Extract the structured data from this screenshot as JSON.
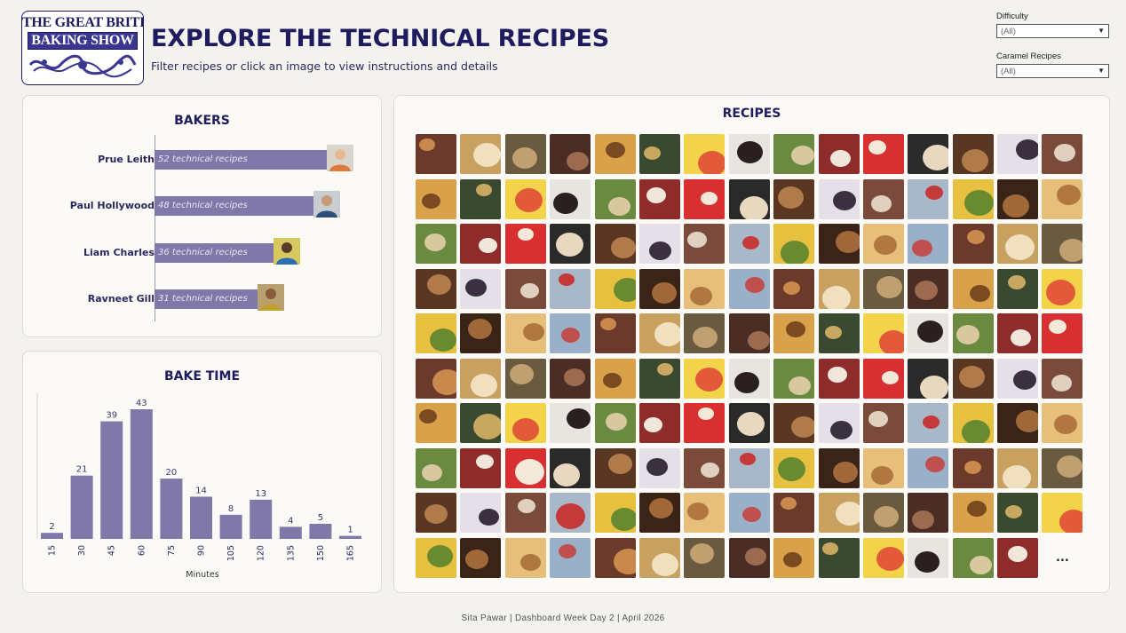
{
  "logo": {
    "line1": "THE GREAT BRITISH",
    "line2": "BAKING SHOW"
  },
  "header": {
    "title": "EXPLORE THE TECHNICAL RECIPES",
    "subtitle": "Filter recipes or click an image to view instructions and details"
  },
  "filters": [
    {
      "label": "Difficulty",
      "value": "(All)"
    },
    {
      "label": "Caramel Recipes",
      "value": "(All)"
    }
  ],
  "bakers_panel": {
    "title": "BAKERS",
    "bakers": [
      {
        "name": "Prue Leith",
        "count": 52,
        "label": "52 technical recipes"
      },
      {
        "name": "Paul Hollywood",
        "count": 48,
        "label": "48 technical recipes"
      },
      {
        "name": "Liam Charles",
        "count": 36,
        "label": "36 technical recipes"
      },
      {
        "name": "Ravneet Gill",
        "count": 31,
        "label": "31 technical recipes"
      }
    ]
  },
  "chart_data": {
    "type": "bar",
    "title": "BAKE TIME",
    "xlabel": "Minutes",
    "ylabel": "",
    "categories": [
      "15",
      "30",
      "45",
      "60",
      "75",
      "90",
      "105",
      "120",
      "135",
      "150",
      "165"
    ],
    "values": [
      2,
      21,
      39,
      43,
      20,
      14,
      8,
      13,
      4,
      5,
      1
    ],
    "ylim": [
      0,
      43
    ],
    "color": "#7f78a8",
    "grid": false
  },
  "recipes_panel": {
    "title": "RECIPES",
    "more_label": "...",
    "tile_count": 149
  },
  "footer": {
    "text": "Sita Pawar  |  Dashboard Week Day 2  |  April 2026"
  },
  "colors": {
    "navy": "#1e1b5e",
    "bar": "#7f78a8",
    "panel": "#fbfaf6",
    "background": "#f3f2ee"
  }
}
